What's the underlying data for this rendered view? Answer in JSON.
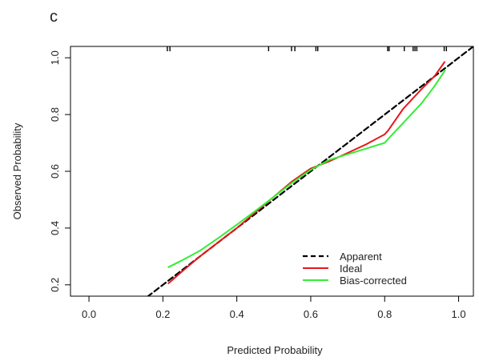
{
  "panel_label": "c",
  "chart_data": {
    "type": "line",
    "title": "",
    "xlabel": "Predicted Probability",
    "ylabel": "Observed Probability",
    "xlim": [
      -0.05,
      1.04
    ],
    "ylim": [
      0.16,
      1.04
    ],
    "x_ticks": [
      "0.0",
      "0.2",
      "0.4",
      "0.6",
      "0.8",
      "1.0"
    ],
    "x_tick_values": [
      0.0,
      0.2,
      0.4,
      0.6,
      0.8,
      1.0
    ],
    "y_ticks": [
      "0.2",
      "0.4",
      "0.6",
      "0.8",
      "1.0"
    ],
    "y_tick_values": [
      0.2,
      0.4,
      0.6,
      0.8,
      1.0
    ],
    "grid": false,
    "legend_position": "bottom-right",
    "series": [
      {
        "name": "Apparent",
        "color": "#000000",
        "dash": "dashed",
        "x": [
          0.0,
          1.0
        ],
        "y": [
          0.0,
          1.0
        ]
      },
      {
        "name": "Ideal",
        "color": "#e41a1c",
        "dash": "solid",
        "x": [
          0.215,
          0.25,
          0.3,
          0.35,
          0.4,
          0.45,
          0.5,
          0.55,
          0.6,
          0.65,
          0.7,
          0.75,
          0.8,
          0.81,
          0.85,
          0.9,
          0.935,
          0.962
        ],
        "y": [
          0.205,
          0.245,
          0.3,
          0.35,
          0.4,
          0.455,
          0.51,
          0.565,
          0.61,
          0.635,
          0.665,
          0.695,
          0.73,
          0.745,
          0.82,
          0.89,
          0.935,
          0.985
        ]
      },
      {
        "name": "Bias-corrected",
        "color": "#33ee33",
        "dash": "solid",
        "x": [
          0.215,
          0.25,
          0.3,
          0.35,
          0.4,
          0.45,
          0.5,
          0.55,
          0.6,
          0.65,
          0.7,
          0.75,
          0.8,
          0.81,
          0.85,
          0.9,
          0.935,
          0.963
        ],
        "y": [
          0.262,
          0.285,
          0.32,
          0.365,
          0.412,
          0.46,
          0.51,
          0.56,
          0.605,
          0.64,
          0.66,
          0.68,
          0.7,
          0.715,
          0.77,
          0.84,
          0.9,
          0.955
        ]
      }
    ],
    "rug": {
      "color": "#000000",
      "x": [
        0.212,
        0.219,
        0.486,
        0.548,
        0.557,
        0.614,
        0.619,
        0.808,
        0.812,
        0.853,
        0.877,
        0.882,
        0.887,
        0.961,
        0.967
      ]
    }
  }
}
